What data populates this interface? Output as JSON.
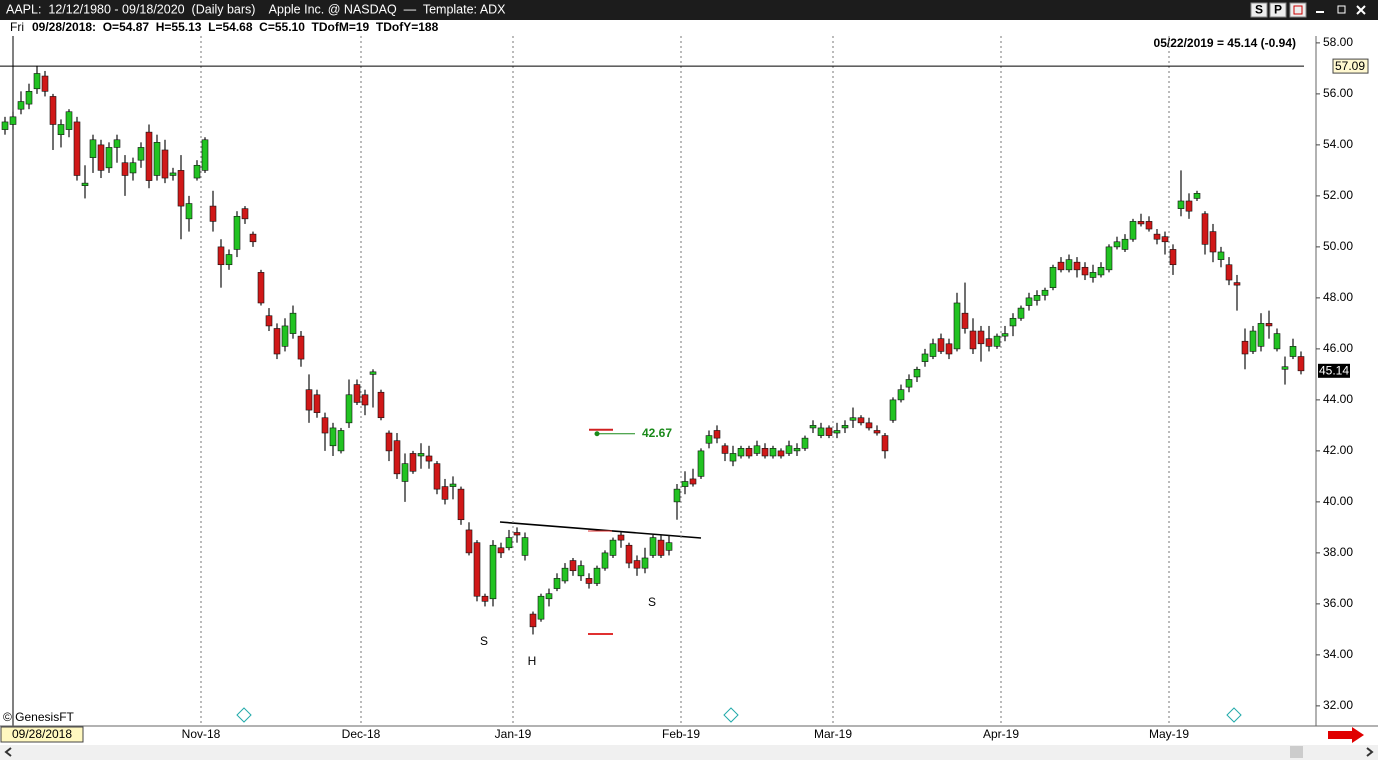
{
  "header": {
    "title": "AAPL:  12/12/1980 - 09/18/2020  (Daily bars)    Apple Inc. @ NASDAQ  —  Template: ADX",
    "buttons": [
      "S",
      "P"
    ]
  },
  "info_bar": {
    "day": "Fri",
    "ohlc_text": "09/28/2018:  O=54.87  H=55.13  L=54.68  C=55.10  TDofM=19  TDofY=188"
  },
  "chart_data": {
    "type": "candlestick",
    "last_quote": "05/22/2019 = 45.14 (-0.94)",
    "cursor_date": "09/28/2018",
    "crosshair_price": 57.09,
    "target": 42.67,
    "annotations": [
      "S",
      "H",
      "S"
    ],
    "watermark": "© GenesisFT",
    "up_color": "#22c322",
    "down_color": "#d01818",
    "target_color": "#1a8a1a",
    "x_grid": true,
    "ylim": [
      31.25,
      58.27
    ],
    "yticks": [
      {
        "value": 32,
        "label": "32.00"
      },
      {
        "value": 34,
        "label": "34.00"
      },
      {
        "value": 36,
        "label": "36.00"
      },
      {
        "value": 38,
        "label": "38.00"
      },
      {
        "value": 40,
        "label": "40.00"
      },
      {
        "value": 42,
        "label": "42.00"
      },
      {
        "value": 44,
        "label": "44.00"
      },
      {
        "value": 46,
        "label": "46.00"
      },
      {
        "value": 48,
        "label": "48.00"
      },
      {
        "value": 50,
        "label": "50.00"
      },
      {
        "value": 52,
        "label": "52.00"
      },
      {
        "value": 54,
        "label": "54.00"
      },
      {
        "value": 56,
        "label": "56.00"
      },
      {
        "value": 58,
        "label": "58.00"
      }
    ],
    "categories": [
      null,
      null,
      null,
      null,
      null,
      null,
      null,
      null,
      null,
      null,
      null,
      null,
      null,
      null,
      null,
      null,
      null,
      null,
      null,
      null,
      null,
      null,
      null,
      null,
      null,
      "Nov-18",
      null,
      null,
      null,
      null,
      null,
      null,
      null,
      null,
      null,
      null,
      null,
      null,
      null,
      null,
      null,
      null,
      null,
      null,
      null,
      "Dec-18",
      null,
      null,
      null,
      null,
      null,
      null,
      null,
      null,
      null,
      null,
      null,
      null,
      null,
      null,
      null,
      null,
      null,
      null,
      "Jan-19",
      null,
      null,
      null,
      null,
      null,
      null,
      null,
      null,
      null,
      null,
      null,
      null,
      null,
      null,
      null,
      null,
      null,
      null,
      null,
      null,
      "Feb-19",
      null,
      null,
      null,
      null,
      null,
      null,
      null,
      null,
      null,
      null,
      null,
      null,
      null,
      null,
      null,
      null,
      null,
      null,
      "Mar-19",
      null,
      null,
      null,
      null,
      null,
      null,
      null,
      null,
      null,
      null,
      null,
      null,
      null,
      null,
      null,
      null,
      null,
      null,
      null,
      null,
      "Apr-19",
      null,
      null,
      null,
      null,
      null,
      null,
      null,
      null,
      null,
      null,
      null,
      null,
      null,
      null,
      null,
      null,
      null,
      null,
      null,
      null,
      "May-19",
      null,
      null,
      null,
      null,
      null,
      null,
      null,
      null,
      null,
      null,
      null,
      null,
      null,
      null,
      null,
      null
    ],
    "bars": [
      [
        54.6,
        55.1,
        54.4,
        54.9
      ],
      [
        54.8,
        55.3,
        54.6,
        55.1
      ],
      [
        55.4,
        56.1,
        55.2,
        55.7
      ],
      [
        55.6,
        56.4,
        55.4,
        56.1
      ],
      [
        56.2,
        57.1,
        56.0,
        56.8
      ],
      [
        56.7,
        56.9,
        55.9,
        56.1
      ],
      [
        55.9,
        56.0,
        53.8,
        54.8
      ],
      [
        54.4,
        55.0,
        53.9,
        54.8
      ],
      [
        54.6,
        55.4,
        54.3,
        55.3
      ],
      [
        54.9,
        55.1,
        52.6,
        52.8
      ],
      [
        52.4,
        53.2,
        51.9,
        52.5
      ],
      [
        53.5,
        54.4,
        52.9,
        54.2
      ],
      [
        54.0,
        54.2,
        52.7,
        53.0
      ],
      [
        53.1,
        54.1,
        52.9,
        53.9
      ],
      [
        53.9,
        54.4,
        53.3,
        54.2
      ],
      [
        53.3,
        53.6,
        52.0,
        52.8
      ],
      [
        52.9,
        53.5,
        52.6,
        53.3
      ],
      [
        53.4,
        54.1,
        53.1,
        53.9
      ],
      [
        54.5,
        54.8,
        52.3,
        52.6
      ],
      [
        52.8,
        54.4,
        52.6,
        54.1
      ],
      [
        53.8,
        54.2,
        52.5,
        52.7
      ],
      [
        52.8,
        53.1,
        52.6,
        52.9
      ],
      [
        53.0,
        53.6,
        50.3,
        51.6
      ],
      [
        51.1,
        52.0,
        50.6,
        51.7
      ],
      [
        52.7,
        53.4,
        52.6,
        53.2
      ],
      [
        53.0,
        54.3,
        52.9,
        54.2
      ],
      [
        51.6,
        52.2,
        50.6,
        51.0
      ],
      [
        50.0,
        50.3,
        48.4,
        49.3
      ],
      [
        49.3,
        49.9,
        49.1,
        49.7
      ],
      [
        49.9,
        51.4,
        49.6,
        51.2
      ],
      [
        51.5,
        51.6,
        50.9,
        51.1
      ],
      [
        50.5,
        50.6,
        50.0,
        50.2
      ],
      [
        49.0,
        49.1,
        47.7,
        47.8
      ],
      [
        47.3,
        47.6,
        46.7,
        46.9
      ],
      [
        46.8,
        47.0,
        45.6,
        45.8
      ],
      [
        46.1,
        47.2,
        45.9,
        46.9
      ],
      [
        46.6,
        47.7,
        46.4,
        47.4
      ],
      [
        46.5,
        46.7,
        45.3,
        45.6
      ],
      [
        44.4,
        45.0,
        43.1,
        43.6
      ],
      [
        44.2,
        44.4,
        43.3,
        43.5
      ],
      [
        43.3,
        43.5,
        42.0,
        42.7
      ],
      [
        42.2,
        43.1,
        41.8,
        42.9
      ],
      [
        42.0,
        42.9,
        41.9,
        42.8
      ],
      [
        43.1,
        44.8,
        42.9,
        44.2
      ],
      [
        44.6,
        44.8,
        43.8,
        43.9
      ],
      [
        44.2,
        44.4,
        43.4,
        43.8
      ],
      [
        45.0,
        45.2,
        43.7,
        45.1
      ],
      [
        44.3,
        44.4,
        43.2,
        43.3
      ],
      [
        42.7,
        42.8,
        41.6,
        42.0
      ],
      [
        42.4,
        42.7,
        40.9,
        41.1
      ],
      [
        40.8,
        41.9,
        40.0,
        41.5
      ],
      [
        41.9,
        42.0,
        41.1,
        41.2
      ],
      [
        41.8,
        42.3,
        41.3,
        41.9
      ],
      [
        41.8,
        42.2,
        41.3,
        41.6
      ],
      [
        41.5,
        41.6,
        40.3,
        40.5
      ],
      [
        40.6,
        40.9,
        39.9,
        40.1
      ],
      [
        40.6,
        41.0,
        40.1,
        40.7
      ],
      [
        40.5,
        40.6,
        39.1,
        39.3
      ],
      [
        38.9,
        39.2,
        37.9,
        38.0
      ],
      [
        38.4,
        38.5,
        36.1,
        36.3
      ],
      [
        36.3,
        36.4,
        35.9,
        36.1
      ],
      [
        36.2,
        38.5,
        35.9,
        38.3
      ],
      [
        38.2,
        38.4,
        37.8,
        38.0
      ],
      [
        38.2,
        38.9,
        38.1,
        38.6
      ],
      [
        38.8,
        39.0,
        38.4,
        38.7
      ],
      [
        37.9,
        38.8,
        37.7,
        38.6
      ],
      [
        35.6,
        35.7,
        34.8,
        35.1
      ],
      [
        35.4,
        36.4,
        35.3,
        36.3
      ],
      [
        36.2,
        36.6,
        35.9,
        36.4
      ],
      [
        36.6,
        37.2,
        36.5,
        37.0
      ],
      [
        36.9,
        37.6,
        36.8,
        37.4
      ],
      [
        37.7,
        37.8,
        37.1,
        37.3
      ],
      [
        37.1,
        37.7,
        36.9,
        37.5
      ],
      [
        37.0,
        37.2,
        36.6,
        36.8
      ],
      [
        36.8,
        37.5,
        36.7,
        37.4
      ],
      [
        37.4,
        38.1,
        37.3,
        38.0
      ],
      [
        37.9,
        38.6,
        37.8,
        38.5
      ],
      [
        38.7,
        38.8,
        38.2,
        38.5
      ],
      [
        38.3,
        38.4,
        37.4,
        37.6
      ],
      [
        37.7,
        37.9,
        37.1,
        37.4
      ],
      [
        37.4,
        38.2,
        37.2,
        37.8
      ],
      [
        37.9,
        38.7,
        37.8,
        38.6
      ],
      [
        38.5,
        38.7,
        37.8,
        37.9
      ],
      [
        38.1,
        38.7,
        37.9,
        38.4
      ],
      [
        40.0,
        40.7,
        39.3,
        40.5
      ],
      [
        40.6,
        41.2,
        40.3,
        40.8
      ],
      [
        40.9,
        41.3,
        40.6,
        40.7
      ],
      [
        41.0,
        42.1,
        40.9,
        42.0
      ],
      [
        42.3,
        42.8,
        42.1,
        42.6
      ],
      [
        42.8,
        43.0,
        42.3,
        42.5
      ],
      [
        42.2,
        42.3,
        41.6,
        41.9
      ],
      [
        41.6,
        42.2,
        41.4,
        41.9
      ],
      [
        41.8,
        42.2,
        41.7,
        42.1
      ],
      [
        42.1,
        42.2,
        41.7,
        41.8
      ],
      [
        41.9,
        42.4,
        41.8,
        42.2
      ],
      [
        42.1,
        42.3,
        41.7,
        41.8
      ],
      [
        41.8,
        42.2,
        41.7,
        42.1
      ],
      [
        42.0,
        42.1,
        41.7,
        41.8
      ],
      [
        41.9,
        42.4,
        41.8,
        42.2
      ],
      [
        42.0,
        42.3,
        41.8,
        42.1
      ],
      [
        42.1,
        42.6,
        42.0,
        42.5
      ],
      [
        42.9,
        43.2,
        42.7,
        43.0
      ],
      [
        42.6,
        43.1,
        42.5,
        42.9
      ],
      [
        42.9,
        43.0,
        42.5,
        42.6
      ],
      [
        42.7,
        43.1,
        42.5,
        42.8
      ],
      [
        42.9,
        43.2,
        42.7,
        43.0
      ],
      [
        43.2,
        43.7,
        42.9,
        43.3
      ],
      [
        43.3,
        43.4,
        43.0,
        43.1
      ],
      [
        43.1,
        43.3,
        42.8,
        42.9
      ],
      [
        42.8,
        43.0,
        42.6,
        42.7
      ],
      [
        42.6,
        42.7,
        41.7,
        42.0
      ],
      [
        43.2,
        44.1,
        43.1,
        44.0
      ],
      [
        44.0,
        44.6,
        43.9,
        44.4
      ],
      [
        44.5,
        45.0,
        44.3,
        44.8
      ],
      [
        44.9,
        45.3,
        44.7,
        45.2
      ],
      [
        45.5,
        46.0,
        45.3,
        45.8
      ],
      [
        45.7,
        46.4,
        45.6,
        46.2
      ],
      [
        46.4,
        46.6,
        45.8,
        45.9
      ],
      [
        46.2,
        46.4,
        45.6,
        45.8
      ],
      [
        46.0,
        48.2,
        45.9,
        47.8
      ],
      [
        47.4,
        48.6,
        46.6,
        46.8
      ],
      [
        46.7,
        47.2,
        45.8,
        46.0
      ],
      [
        46.7,
        46.9,
        45.5,
        46.2
      ],
      [
        46.4,
        46.9,
        45.9,
        46.1
      ],
      [
        46.1,
        46.6,
        46.0,
        46.5
      ],
      [
        46.5,
        46.9,
        46.3,
        46.6
      ],
      [
        46.9,
        47.4,
        46.5,
        47.2
      ],
      [
        47.2,
        47.7,
        47.1,
        47.6
      ],
      [
        47.7,
        48.2,
        47.5,
        48.0
      ],
      [
        47.9,
        48.3,
        47.7,
        48.1
      ],
      [
        48.1,
        48.4,
        47.9,
        48.3
      ],
      [
        48.4,
        49.3,
        48.3,
        49.2
      ],
      [
        49.4,
        49.6,
        49.0,
        49.1
      ],
      [
        49.1,
        49.7,
        49.0,
        49.5
      ],
      [
        49.4,
        49.6,
        48.8,
        49.1
      ],
      [
        49.2,
        49.4,
        48.7,
        48.9
      ],
      [
        48.8,
        49.3,
        48.6,
        49.0
      ],
      [
        48.9,
        49.4,
        48.8,
        49.2
      ],
      [
        49.1,
        50.1,
        49.0,
        50.0
      ],
      [
        50.0,
        50.4,
        49.9,
        50.2
      ],
      [
        49.9,
        50.5,
        49.8,
        50.3
      ],
      [
        50.3,
        51.1,
        50.2,
        51.0
      ],
      [
        51.0,
        51.3,
        50.8,
        50.9
      ],
      [
        51.0,
        51.2,
        50.6,
        50.7
      ],
      [
        50.5,
        50.7,
        50.1,
        50.3
      ],
      [
        50.4,
        50.6,
        49.7,
        50.2
      ],
      [
        49.9,
        50.1,
        48.9,
        49.3
      ],
      [
        51.5,
        53.0,
        51.2,
        51.8
      ],
      [
        51.8,
        52.1,
        51.1,
        51.4
      ],
      [
        51.9,
        52.2,
        51.8,
        52.1
      ],
      [
        51.3,
        51.4,
        49.7,
        50.1
      ],
      [
        50.6,
        50.9,
        49.4,
        49.8
      ],
      [
        49.5,
        50.0,
        49.2,
        49.8
      ],
      [
        49.3,
        49.6,
        48.5,
        48.7
      ],
      [
        48.6,
        48.9,
        47.5,
        48.5
      ],
      [
        46.3,
        46.8,
        45.2,
        45.8
      ],
      [
        45.9,
        46.9,
        45.8,
        46.7
      ],
      [
        46.1,
        47.4,
        45.9,
        47.0
      ],
      [
        47.0,
        47.5,
        46.4,
        46.9
      ],
      [
        46.0,
        46.8,
        45.9,
        46.6
      ],
      [
        45.2,
        45.7,
        44.6,
        45.3
      ],
      [
        45.7,
        46.4,
        45.6,
        46.1
      ],
      [
        45.7,
        45.9,
        45.0,
        45.14
      ]
    ]
  }
}
